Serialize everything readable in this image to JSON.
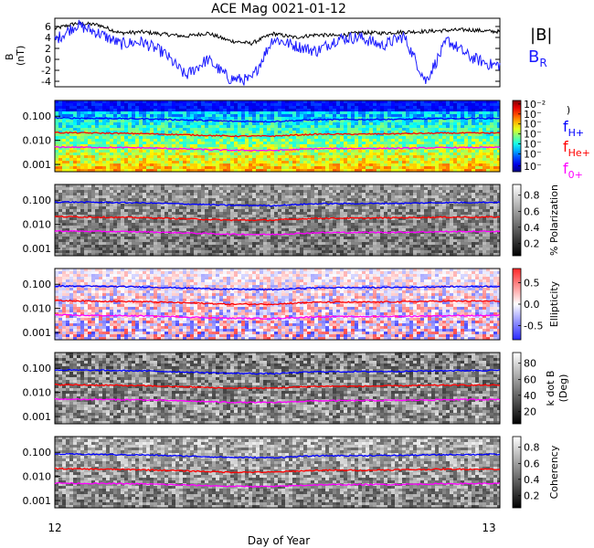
{
  "title": "ACE Mag 0021-01-12",
  "colors": {
    "B_total": "#000000",
    "B_R": "#1a1aff",
    "f_Hp": "#0000ff",
    "f_Hep": "#ff0000",
    "f_Op": "#ff00ff"
  },
  "chart_data": [
    {
      "type": "line",
      "panel": "magnetic-field",
      "ylabel": "B (nT)",
      "ylim": [
        -5,
        7.5
      ],
      "yticks": [
        "6",
        "4",
        "2",
        "0",
        "-2",
        "-4"
      ],
      "xlim": [
        12,
        13
      ],
      "series": [
        {
          "name": "|B|",
          "x": [
            12.0,
            12.05,
            12.1,
            12.15,
            12.2,
            12.25,
            12.3,
            12.35,
            12.4,
            12.45,
            12.5,
            12.55,
            12.6,
            12.65,
            12.7,
            12.75,
            12.8,
            12.85,
            12.9,
            12.95,
            13.0
          ],
          "values": [
            5.6,
            6.6,
            6.3,
            4.8,
            5.0,
            4.6,
            4.2,
            4.8,
            3.4,
            2.9,
            4.7,
            4.0,
            4.5,
            4.3,
            4.9,
            4.8,
            5.0,
            5.1,
            5.3,
            5.4,
            5.1
          ]
        },
        {
          "name": "B_R",
          "x": [
            12.0,
            12.05,
            12.1,
            12.15,
            12.2,
            12.25,
            12.3,
            12.35,
            12.4,
            12.45,
            12.5,
            12.55,
            12.6,
            12.65,
            12.7,
            12.75,
            12.8,
            12.85,
            12.9,
            12.95,
            13.0
          ],
          "values": [
            3.5,
            6.3,
            4.8,
            2.8,
            3.2,
            1.2,
            -3.0,
            0.0,
            -3.5,
            -3.8,
            3.8,
            2.5,
            1.5,
            3.8,
            4.0,
            2.5,
            4.2,
            -4.0,
            3.5,
            0.5,
            -1.0
          ]
        }
      ]
    },
    {
      "type": "heatmap",
      "panel": "power-spectrum",
      "ylim": [
        0.0005,
        0.45
      ],
      "yticks": [
        "0.100",
        "0.010",
        "0.001"
      ],
      "colorbar_ticks": [
        "10⁻²",
        "10⁻",
        "10⁻",
        "10⁻",
        "10⁻",
        "10⁻",
        "10⁻"
      ],
      "colorbar_label": ")"
    },
    {
      "type": "heatmap",
      "panel": "polarization",
      "yticks": [
        "0.100",
        "0.010",
        "0.001"
      ],
      "colorbar_ticks": [
        "0.8",
        "0.6",
        "0.4",
        "0.2"
      ],
      "colorbar_label": "% Polarization"
    },
    {
      "type": "heatmap",
      "panel": "ellipticity",
      "yticks": [
        "0.100",
        "0.010",
        "0.001"
      ],
      "colorbar_ticks": [
        "0.5",
        "0.0",
        "-0.5"
      ],
      "colorbar_label": "Ellipticity"
    },
    {
      "type": "heatmap",
      "panel": "k-dot-b",
      "yticks": [
        "0.100",
        "0.010",
        "0.001"
      ],
      "colorbar_ticks": [
        "80",
        "60",
        "40",
        "20"
      ],
      "colorbar_label": "k dot B",
      "colorbar_label2": "(Deg)"
    },
    {
      "type": "heatmap",
      "panel": "coherency",
      "yticks": [
        "0.100",
        "0.010",
        "0.001"
      ],
      "colorbar_ticks": [
        "0.8",
        "0.6",
        "0.4",
        "0.2"
      ],
      "colorbar_label": "Coherency"
    }
  ],
  "gyro_lines": {
    "x": [
      12.0,
      12.1,
      12.2,
      12.3,
      12.4,
      12.5,
      12.6,
      12.7,
      12.8,
      12.9,
      13.0
    ],
    "f_Hp": [
      0.085,
      0.082,
      0.078,
      0.07,
      0.062,
      0.06,
      0.072,
      0.073,
      0.075,
      0.08,
      0.082
    ],
    "f_Hep": [
      0.021,
      0.02,
      0.019,
      0.017,
      0.015,
      0.015,
      0.018,
      0.018,
      0.019,
      0.02,
      0.02
    ],
    "f_Op": [
      0.0053,
      0.0051,
      0.0049,
      0.0044,
      0.0039,
      0.0038,
      0.0045,
      0.0046,
      0.0047,
      0.005,
      0.0051
    ]
  },
  "legend": {
    "B_total": "|B|",
    "B_R_main": "B",
    "B_R_sub": "R",
    "f": "f",
    "H_sub": "H+",
    "He_sub": "He+",
    "O_sub": "0+"
  },
  "xaxis": {
    "label": "Day of Year",
    "ticks": [
      "12",
      "13"
    ]
  }
}
